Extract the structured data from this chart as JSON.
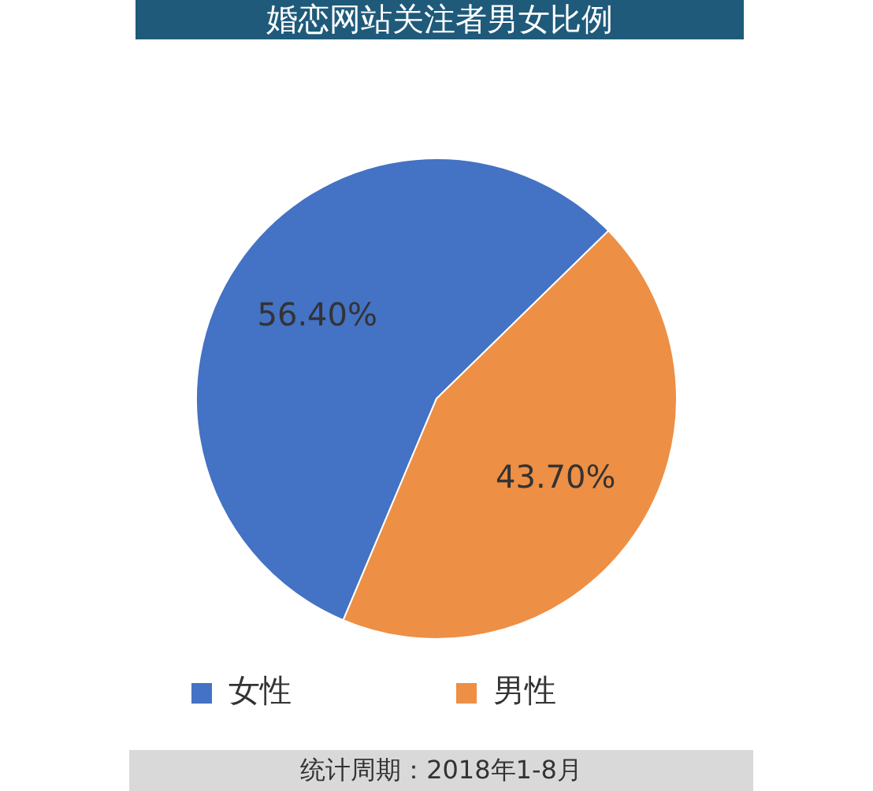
{
  "chart_data": {
    "type": "pie",
    "title": "婚恋网站关注者男女比例",
    "categories": [
      "女性",
      "男性"
    ],
    "values": [
      56.4,
      43.7
    ],
    "value_labels": [
      "56.40%",
      "43.70%"
    ],
    "colors": [
      "#4472c4",
      "#ed8f45"
    ],
    "legend": "bottom",
    "annotations": [
      "统计周期：2018年1-8月"
    ]
  }
}
